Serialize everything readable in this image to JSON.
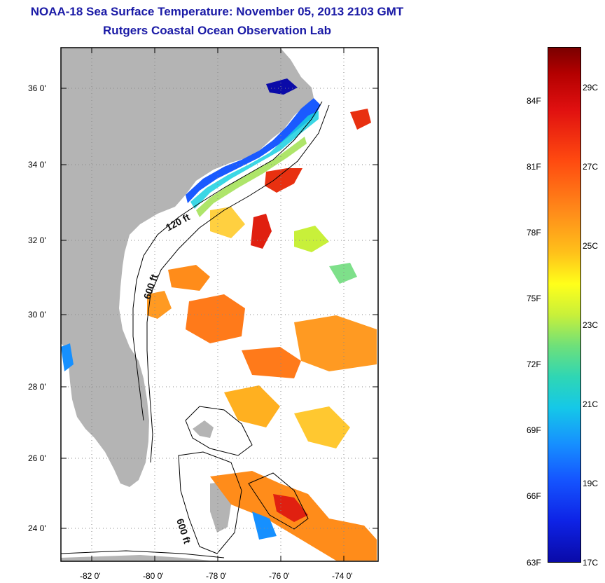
{
  "title": {
    "line1": "NOAA-18 Sea Surface Temperature:  November 05, 2013 2103 GMT",
    "line2": "Rutgers Coastal Ocean Observation Lab"
  },
  "map": {
    "lat_ticks": [
      "36 0'",
      "34 0'",
      "32 0'",
      "30 0'",
      "28 0'",
      "26 0'",
      "24 0'"
    ],
    "lon_ticks": [
      "-82 0'",
      "-80 0'",
      "-78 0'",
      "-76 0'",
      "-74 0'"
    ],
    "contour_labels": [
      "120 ft",
      "600 ft",
      "600 ft"
    ],
    "land_color": "#b4b4b4",
    "bathymetry_color": "#000000"
  },
  "colorbar": {
    "fahrenheit": [
      "84F",
      "81F",
      "78F",
      "75F",
      "72F",
      "69F",
      "66F",
      "63F"
    ],
    "celsius": [
      "29C",
      "27C",
      "25C",
      "23C",
      "21C",
      "19C",
      "17C"
    ],
    "colors": [
      "#7a0000",
      "#e01010",
      "#ff8c1a",
      "#ffff1a",
      "#2fd6b4",
      "#1690ff",
      "#0a0aa8"
    ]
  }
}
